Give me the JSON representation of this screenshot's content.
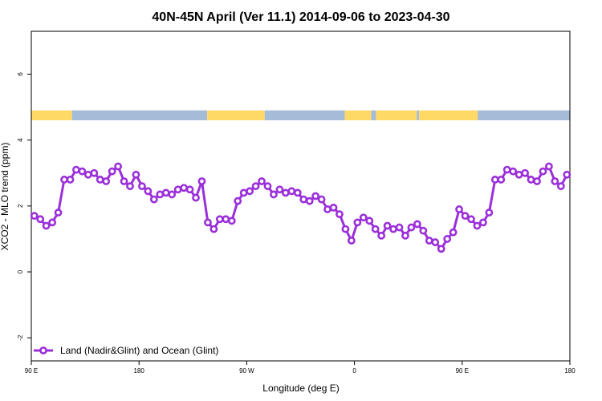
{
  "chart_data": {
    "type": "line",
    "title": "40N-45N April (Ver 11.1)   2014-09-06 to 2023-04-30",
    "xlabel": "Longitude (deg E)",
    "ylabel": "XCO2 - MLO trend (ppm)",
    "xlim": [
      90,
      540
    ],
    "ylim": [
      -2.7,
      7.3
    ],
    "x_ticks": [
      {
        "value": 90,
        "label": "90 E"
      },
      {
        "value": 180,
        "label": "180"
      },
      {
        "value": 270,
        "label": "90 W"
      },
      {
        "value": 360,
        "label": "0"
      },
      {
        "value": 450,
        "label": "90 E"
      },
      {
        "value": 540,
        "label": "180"
      }
    ],
    "y_ticks": [
      {
        "value": -2,
        "label": "-2"
      },
      {
        "value": 0,
        "label": "0"
      },
      {
        "value": 2,
        "label": "2"
      },
      {
        "value": 4,
        "label": "4"
      },
      {
        "value": 6,
        "label": "6"
      }
    ],
    "grid": false,
    "legend_position": "bottom-left",
    "series": [
      {
        "name": "Land (Nadir&Glint) and Ocean (Glint)",
        "color": "#9b30d9",
        "marker": "open-circle",
        "x": [
          92.5,
          97.5,
          102.5,
          107.5,
          112.5,
          117.5,
          122.5,
          127.5,
          132.5,
          137.5,
          142.5,
          147.5,
          152.5,
          157.5,
          162.5,
          167.5,
          172.5,
          177.5,
          182.5,
          187.5,
          192.5,
          197.5,
          202.5,
          207.5,
          212.5,
          217.5,
          222.5,
          227.5,
          232.5,
          237.5,
          242.5,
          247.5,
          252.5,
          257.5,
          262.5,
          267.5,
          272.5,
          277.5,
          282.5,
          287.5,
          292.5,
          297.5,
          302.5,
          307.5,
          312.5,
          317.5,
          322.5,
          327.5,
          332.5,
          337.5,
          342.5,
          347.5,
          352.5,
          357.5,
          362.5,
          367.5,
          372.5,
          377.5,
          382.5,
          387.5,
          392.5,
          397.5,
          402.5,
          407.5,
          412.5,
          417.5,
          422.5,
          427.5,
          432.5,
          437.5,
          442.5,
          447.5,
          452.5,
          457.5,
          462.5,
          467.5,
          472.5,
          477.5,
          482.5,
          487.5,
          492.5,
          497.5,
          502.5,
          507.5,
          512.5,
          517.5,
          522.5,
          527.5,
          532.5,
          537.5
        ],
        "y": [
          1.7,
          1.6,
          1.4,
          1.5,
          1.8,
          2.8,
          2.8,
          3.1,
          3.05,
          2.95,
          3.0,
          2.8,
          2.75,
          3.05,
          3.2,
          2.75,
          2.6,
          2.95,
          2.6,
          2.45,
          2.2,
          2.35,
          2.4,
          2.35,
          2.5,
          2.55,
          2.5,
          2.25,
          2.75,
          1.5,
          1.3,
          1.6,
          1.6,
          1.55,
          2.15,
          2.4,
          2.45,
          2.6,
          2.75,
          2.6,
          2.35,
          2.5,
          2.4,
          2.45,
          2.4,
          2.2,
          2.15,
          2.3,
          2.2,
          1.9,
          1.95,
          1.75,
          1.3,
          0.95,
          1.5,
          1.65,
          1.55,
          1.3,
          1.1,
          1.4,
          1.3,
          1.35,
          1.1,
          1.35,
          1.45,
          1.25,
          0.95,
          0.9,
          0.7,
          1.0,
          1.2,
          1.9,
          1.7,
          1.6,
          1.4,
          1.5,
          1.8,
          2.8,
          2.8,
          3.1,
          3.05,
          2.95,
          3.0,
          2.8,
          2.75,
          3.05,
          3.2,
          2.75,
          2.6,
          2.95
        ]
      }
    ],
    "land_ocean_strip": {
      "y_range": [
        4.6,
        4.9
      ],
      "land_color": "#ffd966",
      "ocean_color": "#a5bcd9",
      "segments": [
        {
          "type": "land",
          "from": 90,
          "to": 124
        },
        {
          "type": "ocean",
          "from": 124,
          "to": 237
        },
        {
          "type": "land",
          "from": 237,
          "to": 285
        },
        {
          "type": "ocean",
          "from": 285,
          "to": 352
        },
        {
          "type": "land",
          "from": 352,
          "to": 374
        },
        {
          "type": "ocean",
          "from": 374,
          "to": 378
        },
        {
          "type": "land",
          "from": 378,
          "to": 412
        },
        {
          "type": "ocean",
          "from": 412,
          "to": 414
        },
        {
          "type": "land",
          "from": 414,
          "to": 463
        },
        {
          "type": "ocean",
          "from": 463,
          "to": 540
        }
      ]
    }
  }
}
